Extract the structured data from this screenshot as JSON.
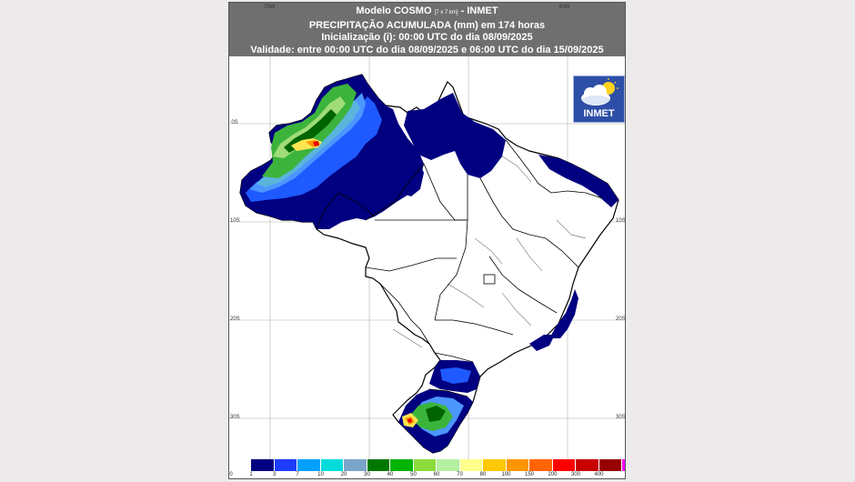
{
  "header": {
    "line1_main": "Modelo COSMO",
    "line1_small": "[7 x 7 km]",
    "line1_suffix": "- INMET",
    "line2": "PRECIPITAÇÃO ACUMULADA (mm) em 174 horas",
    "line3": "Inicialização (i): 00:00 UTC do dia 08/09/2025",
    "line4": "Validade: entre 00:00 UTC do dia 08/09/2025 e 06:00 UTC do dia 15/09/2025"
  },
  "axes": {
    "lon_labels": [
      "70W",
      "40W"
    ],
    "lat_labels": [
      "0S",
      "10S",
      "20S",
      "30S"
    ]
  },
  "logo": {
    "text": "INMET",
    "icon": "cloud-sun-icon"
  },
  "colorbar": {
    "colors": [
      "#ffffff",
      "#000080",
      "#1e3cff",
      "#00a0ff",
      "#00dcdc",
      "#7ba5c8",
      "#007800",
      "#00b400",
      "#8cdc3c",
      "#b4f0a0",
      "#ffff8c",
      "#ffc800",
      "#ff9600",
      "#ff6400",
      "#ff0000",
      "#c80000",
      "#960000",
      "#ff00ff",
      "#ff9bd0",
      "#ffb4dc",
      "#a090c0",
      "#808080"
    ],
    "ticks": [
      "0",
      "1",
      "3",
      "7",
      "10",
      "20",
      "30",
      "40",
      "50",
      "60",
      "70",
      "80",
      "100",
      "150",
      "200",
      "300",
      "400"
    ]
  },
  "map_colors": {
    "heavy": "#000080",
    "blue": "#1e5aff",
    "light_blue": "#4c96ff",
    "cyan": "#5ab4dc",
    "gray": "#7ba5c8",
    "dark_green": "#006400",
    "green": "#3cb43c",
    "light_green": "#a0dc78",
    "yellow": "#ffe650",
    "orange": "#ff9600",
    "red": "#e60000"
  }
}
